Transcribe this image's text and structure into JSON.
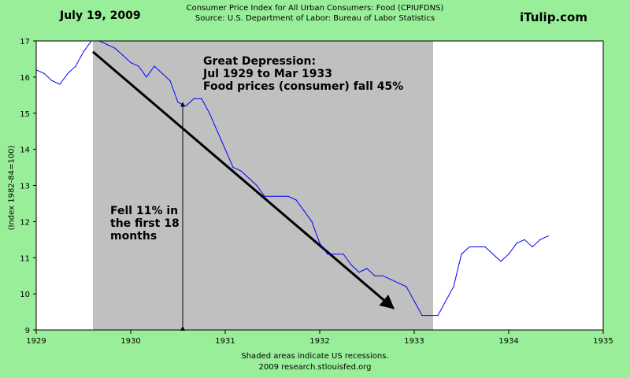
{
  "header": {
    "date": "July 19, 2009",
    "brand": "iTulip.com",
    "title": "Consumer Price Index for All Urban Consumers: Food (CPIUFDNS)",
    "source": "Source: U.S. Department of Labor: Bureau of Labor Statistics"
  },
  "footer": {
    "note": "Shaded areas indicate US recessions.",
    "credit": "2009 research.stlouisfed.org"
  },
  "colors": {
    "background": "#99ee99",
    "plot": "#ffffff",
    "recession": "#c0c0c0",
    "series": "#0000ff",
    "annotation": "#000000"
  },
  "chart_data": {
    "type": "line",
    "ylabel": "(Index 1982-84=100)",
    "xlim": [
      1929,
      1935
    ],
    "ylim": [
      9,
      17
    ],
    "x_ticks": [
      1929,
      1930,
      1931,
      1932,
      1933,
      1934,
      1935
    ],
    "x_tick_labels": [
      "1929",
      "1930",
      "1931",
      "1932",
      "1933",
      "1934",
      "1935"
    ],
    "y_ticks": [
      9,
      10,
      11,
      12,
      13,
      14,
      15,
      16,
      17
    ],
    "y_tick_labels": [
      "9",
      "10",
      "11",
      "12",
      "13",
      "14",
      "15",
      "16",
      "17"
    ],
    "grid": false,
    "recessions": [
      {
        "start": 1929.6,
        "end": 1933.2
      }
    ],
    "series": [
      {
        "x": [
          1929.0,
          1929.083,
          1929.167,
          1929.25,
          1929.333,
          1929.417,
          1929.5,
          1929.583,
          1929.667,
          1929.75,
          1929.833,
          1929.917,
          1930.0,
          1930.083,
          1930.167,
          1930.25,
          1930.333,
          1930.417,
          1930.5,
          1930.583,
          1930.667,
          1930.75,
          1930.833,
          1930.917,
          1931.0,
          1931.083,
          1931.167,
          1931.25,
          1931.333,
          1931.417,
          1931.5,
          1931.583,
          1931.667,
          1931.75,
          1931.833,
          1931.917,
          1932.0,
          1932.083,
          1932.167,
          1932.25,
          1932.333,
          1932.417,
          1932.5,
          1932.583,
          1932.667,
          1932.75,
          1932.833,
          1932.917,
          1933.0,
          1933.083,
          1933.167,
          1933.25,
          1933.333,
          1933.417,
          1933.5,
          1933.583,
          1933.667,
          1933.75,
          1933.833,
          1933.917,
          1934.0,
          1934.083,
          1934.167,
          1934.25,
          1934.333,
          1934.417
        ],
        "values": [
          16.2,
          16.1,
          15.9,
          15.8,
          16.1,
          16.3,
          16.7,
          17.0,
          17.0,
          16.9,
          16.8,
          16.6,
          16.4,
          16.3,
          16.0,
          16.3,
          16.1,
          15.9,
          15.3,
          15.2,
          15.4,
          15.4,
          15.0,
          14.5,
          14.0,
          13.5,
          13.4,
          13.2,
          13.0,
          12.7,
          12.7,
          12.7,
          12.7,
          12.6,
          12.3,
          12.0,
          11.4,
          11.1,
          11.1,
          11.1,
          10.8,
          10.6,
          10.7,
          10.5,
          10.5,
          10.4,
          10.3,
          10.2,
          9.8,
          9.4,
          9.4,
          9.4,
          9.8,
          10.2,
          11.1,
          11.3,
          11.3,
          11.3,
          11.1,
          10.9,
          11.1,
          11.4,
          11.5,
          11.3,
          11.5,
          11.6
        ]
      }
    ],
    "annotations": {
      "depression_title": "Great Depression:",
      "depression_period": "Jul 1929 to Mar 1933",
      "depression_note": "Food prices (consumer) fall 45%",
      "fell_line1": "Fell 11% in",
      "fell_line2": "the first 18",
      "fell_line3": "months",
      "trend_arrow": {
        "from": [
          1929.6,
          16.7
        ],
        "to": [
          1932.78,
          9.6
        ]
      },
      "drop_arrow": {
        "x": 1930.55,
        "from": 9.1,
        "to": 15.3
      }
    }
  }
}
